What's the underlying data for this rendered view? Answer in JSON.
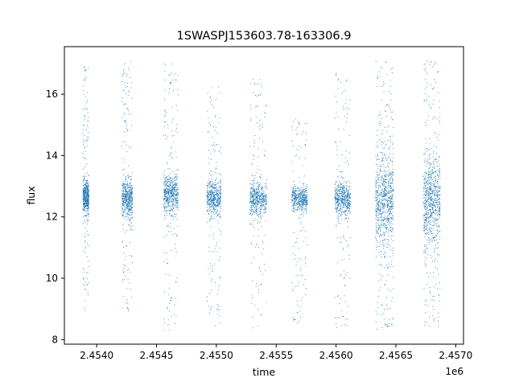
{
  "chart_data": {
    "type": "scatter",
    "title": "1SWASPJ153603.78-163306.9",
    "xlabel": "time",
    "ylabel": "flux",
    "x_offset_label": "1e6",
    "xlim": [
      2453730,
      2457065
    ],
    "ylim": [
      7.85,
      17.55
    ],
    "x_ticks": [
      2454000,
      2454500,
      2455000,
      2455500,
      2456000,
      2456500,
      2457000
    ],
    "x_tick_labels": [
      "2.4540",
      "2.4545",
      "2.4550",
      "2.4555",
      "2.4560",
      "2.4565",
      "2.4570"
    ],
    "y_ticks": [
      8,
      10,
      12,
      14,
      16
    ],
    "y_tick_labels": [
      "8",
      "10",
      "12",
      "14",
      "16"
    ],
    "grid": false,
    "legend": "none",
    "marker_color": "#1f77b4",
    "series": [
      {
        "points_summary": "dense vertical clusters of flux measurements per observing season",
        "clusters": [
          {
            "x_start": 2453885,
            "x_end": 2453935,
            "center": 12.65,
            "core_half_width": 0.45,
            "min": 8.9,
            "max": 16.9
          },
          {
            "x_start": 2454210,
            "x_end": 2454300,
            "center": 12.6,
            "core_half_width": 0.55,
            "min": 8.9,
            "max": 17.1
          },
          {
            "x_start": 2454560,
            "x_end": 2454680,
            "center": 12.75,
            "core_half_width": 0.6,
            "min": 8.3,
            "max": 17.0
          },
          {
            "x_start": 2454920,
            "x_end": 2455040,
            "center": 12.6,
            "core_half_width": 0.5,
            "min": 8.4,
            "max": 16.3
          },
          {
            "x_start": 2455280,
            "x_end": 2455420,
            "center": 12.6,
            "core_half_width": 0.5,
            "min": 8.3,
            "max": 16.5
          },
          {
            "x_start": 2455630,
            "x_end": 2455760,
            "center": 12.6,
            "core_half_width": 0.35,
            "min": 8.5,
            "max": 15.2
          },
          {
            "x_start": 2455990,
            "x_end": 2456120,
            "center": 12.6,
            "core_half_width": 0.5,
            "min": 8.3,
            "max": 16.9
          },
          {
            "x_start": 2456330,
            "x_end": 2456480,
            "center": 12.5,
            "core_half_width": 1.4,
            "min": 8.3,
            "max": 17.1
          },
          {
            "x_start": 2456730,
            "x_end": 2456870,
            "center": 12.5,
            "core_half_width": 1.3,
            "min": 8.3,
            "max": 17.1
          }
        ]
      }
    ]
  }
}
